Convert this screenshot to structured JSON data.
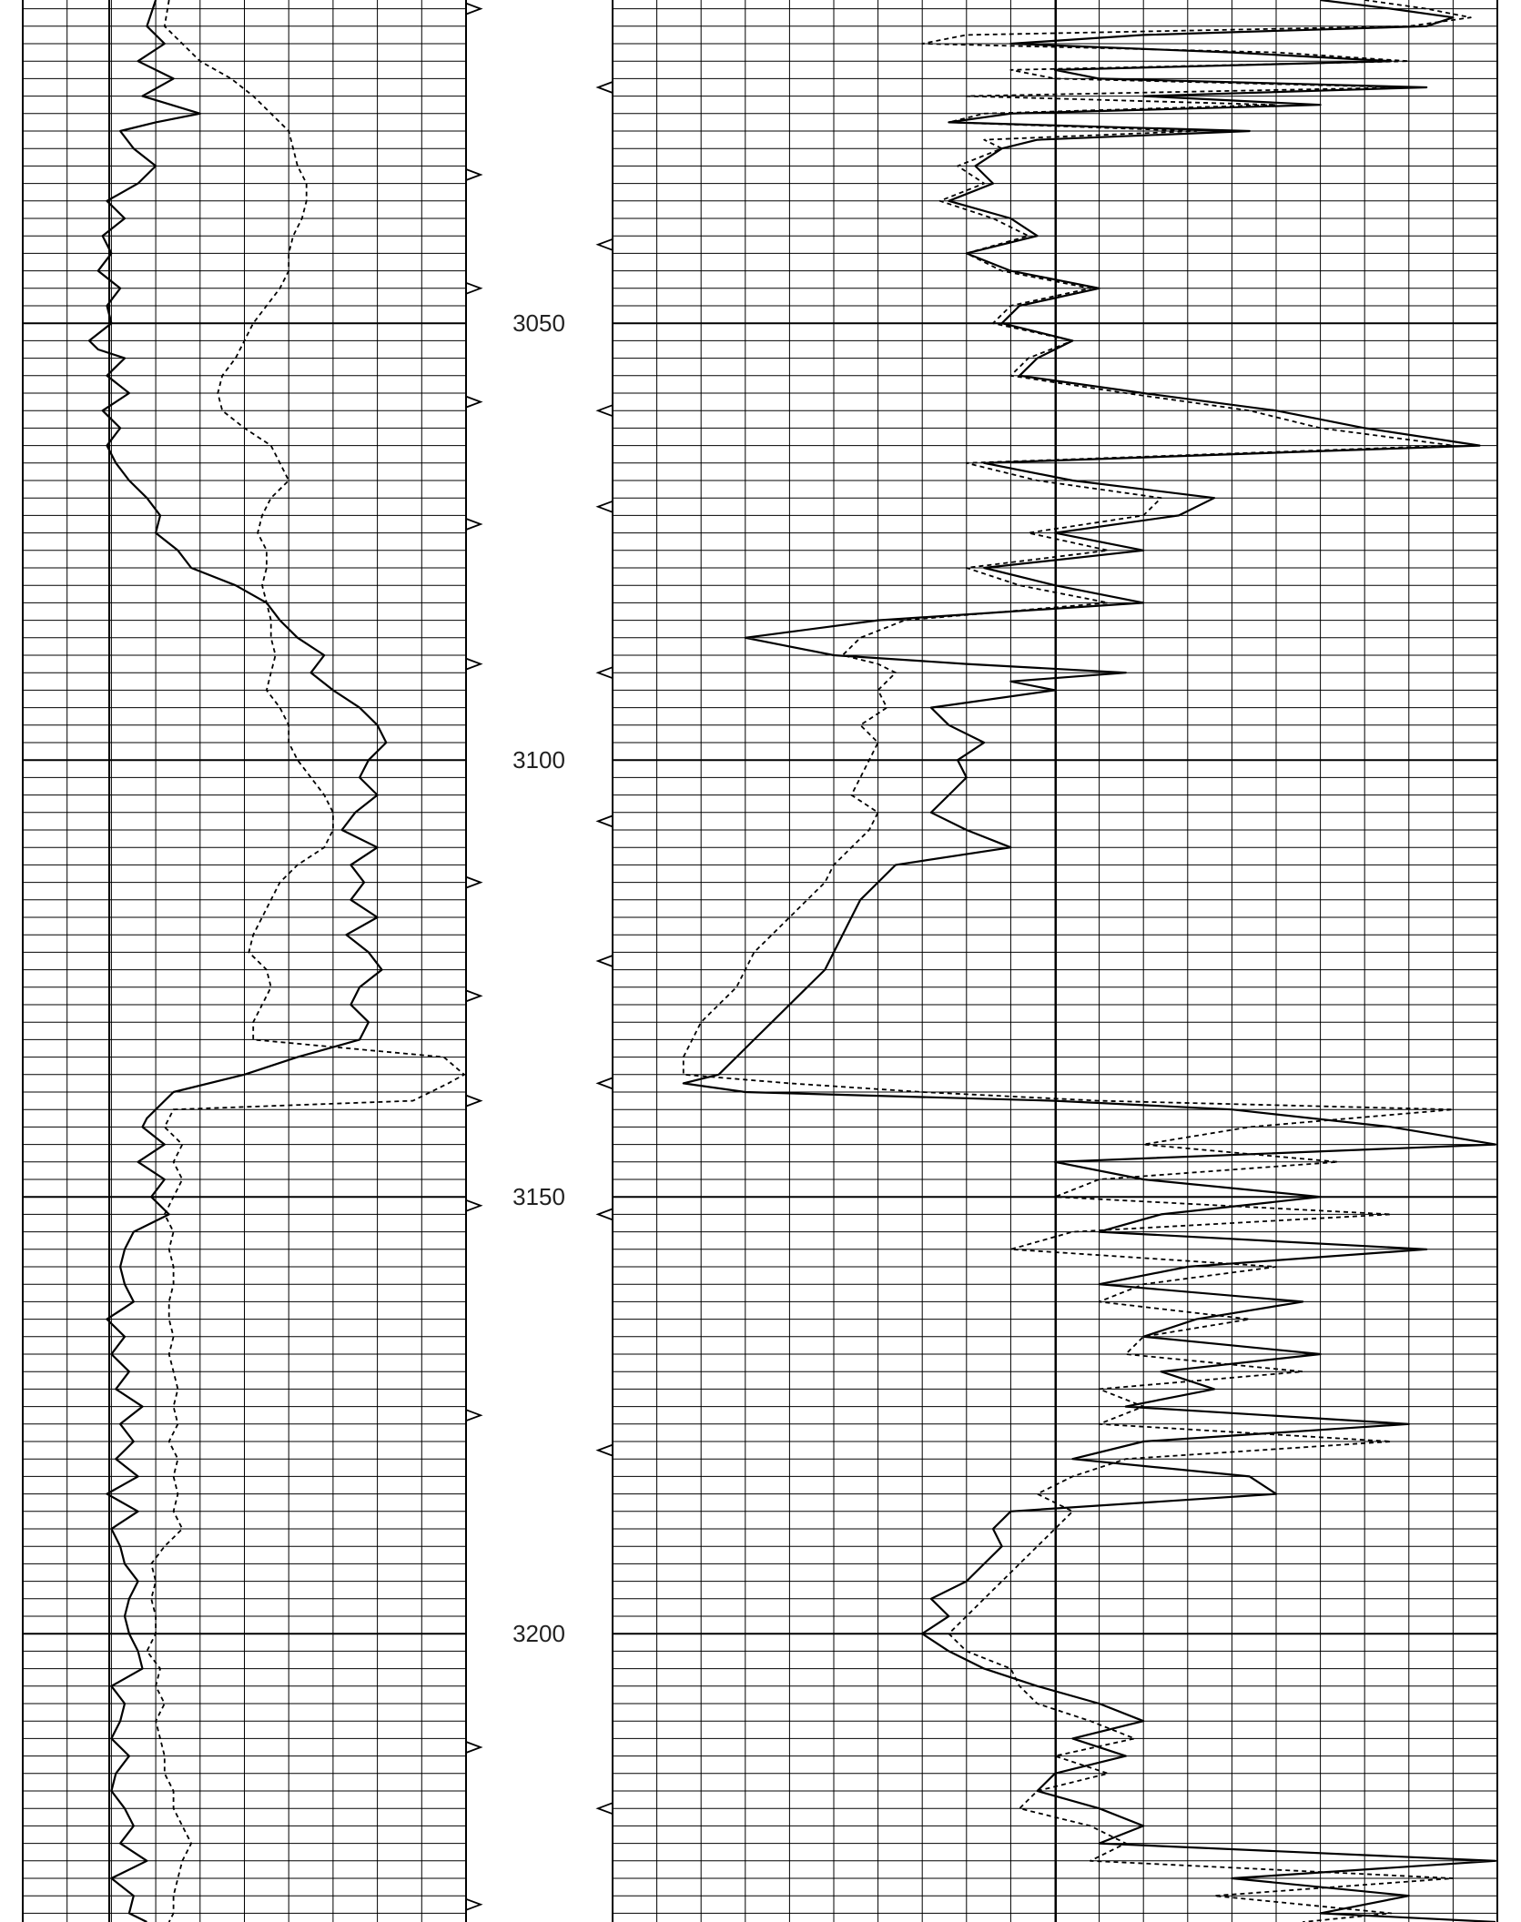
{
  "chart_data": {
    "type": "line",
    "title": "",
    "depth_axis": {
      "range": [
        3013,
        3233
      ],
      "tick_labels": [
        "3050",
        "3100",
        "3150",
        "3200"
      ],
      "major_step": 50,
      "minor_step": 2
    },
    "tracks": [
      {
        "name": "left-track",
        "scale": [
          0,
          100
        ],
        "series": [
          {
            "style": "solid",
            "depth": [
              3013,
              3016,
              3018,
              3020,
              3022,
              3024,
              3026,
              3027,
              3028,
              3030,
              3032,
              3034,
              3036,
              3038,
              3040,
              3042,
              3044,
              3046,
              3048,
              3050,
              3052,
              3053,
              3054,
              3056,
              3058,
              3060,
              3062,
              3064,
              3066,
              3068,
              3070,
              3072,
              3074,
              3076,
              3078,
              3080,
              3082,
              3084,
              3086,
              3088,
              3090,
              3092,
              3094,
              3096,
              3098,
              3100,
              3102,
              3104,
              3106,
              3108,
              3110,
              3112,
              3114,
              3116,
              3118,
              3120,
              3122,
              3124,
              3126,
              3128,
              3130,
              3132,
              3134,
              3136,
              3138,
              3140,
              3141,
              3142,
              3144,
              3146,
              3148,
              3150,
              3152,
              3154,
              3156,
              3158,
              3160,
              3162,
              3164,
              3166,
              3168,
              3170,
              3172,
              3174,
              3176,
              3178,
              3180,
              3182,
              3184,
              3186,
              3188,
              3190,
              3192,
              3194,
              3196,
              3198,
              3200,
              3202,
              3204,
              3206,
              3208,
              3210,
              3212,
              3214,
              3216,
              3218,
              3220,
              3222,
              3224,
              3226,
              3228,
              3230,
              3232,
              3233
            ],
            "value": [
              30,
              28,
              32,
              26,
              34,
              27,
              40,
              30,
              22,
              25,
              30,
              26,
              19,
              23,
              18,
              20,
              17,
              22,
              19,
              20,
              15,
              17,
              23,
              19,
              24,
              18,
              22,
              19,
              21,
              24,
              28,
              31,
              30,
              35,
              38,
              48,
              55,
              58,
              62,
              68,
              65,
              70,
              76,
              80,
              82,
              78,
              76,
              80,
              75,
              72,
              80,
              74,
              77,
              74,
              80,
              73,
              78,
              81,
              76,
              74,
              78,
              76,
              62,
              50,
              34,
              30,
              28,
              27,
              32,
              26,
              32,
              29,
              33,
              25,
              23,
              22,
              23,
              25,
              19,
              23,
              20,
              24,
              21,
              27,
              22,
              25,
              21,
              26,
              19,
              26,
              20,
              22,
              23,
              26,
              24,
              23,
              24,
              26,
              27,
              20,
              23,
              22,
              20,
              24,
              21,
              20,
              23,
              25,
              22,
              28,
              20,
              25,
              24,
              28
            ]
          },
          {
            "style": "dashed",
            "depth": [
              3013,
              3016,
              3018,
              3020,
              3022,
              3024,
              3026,
              3028,
              3030,
              3032,
              3034,
              3036,
              3038,
              3040,
              3042,
              3044,
              3046,
              3048,
              3050,
              3052,
              3054,
              3056,
              3058,
              3060,
              3062,
              3064,
              3066,
              3068,
              3070,
              3072,
              3074,
              3076,
              3078,
              3080,
              3082,
              3084,
              3086,
              3088,
              3090,
              3092,
              3094,
              3096,
              3098,
              3100,
              3102,
              3104,
              3106,
              3108,
              3110,
              3112,
              3114,
              3116,
              3118,
              3120,
              3122,
              3124,
              3126,
              3128,
              3130,
              3132,
              3134,
              3136,
              3137,
              3138,
              3139,
              3140,
              3142,
              3144,
              3146,
              3148,
              3150,
              3152,
              3154,
              3156,
              3158,
              3160,
              3162,
              3164,
              3166,
              3168,
              3170,
              3172,
              3174,
              3176,
              3178,
              3180,
              3182,
              3184,
              3186,
              3188,
              3190,
              3192,
              3194,
              3196,
              3198,
              3200,
              3202,
              3204,
              3206,
              3208,
              3210,
              3212,
              3214,
              3216,
              3218,
              3220,
              3222,
              3224,
              3226,
              3228,
              3230,
              3232,
              3233
            ],
            "value": [
              33,
              32,
              36,
              40,
              47,
              52,
              56,
              60,
              61,
              62,
              64,
              64,
              63,
              61,
              60,
              60,
              58,
              55,
              52,
              50,
              48,
              45,
              44,
              45,
              50,
              56,
              58,
              60,
              56,
              54,
              53,
              55,
              55,
              54,
              55,
              56,
              56,
              57,
              56,
              55,
              58,
              60,
              60,
              62,
              65,
              68,
              70,
              70,
              68,
              62,
              58,
              56,
              54,
              52,
              51,
              55,
              56,
              54,
              52,
              52,
              95,
              100,
              96,
              92,
              88,
              34,
              32,
              36,
              34,
              36,
              34,
              32,
              34,
              33,
              34,
              34,
              33,
              33,
              34,
              33,
              34,
              35,
              34,
              35,
              33,
              35,
              34,
              35,
              34,
              36,
              32,
              29,
              30,
              29,
              30,
              30,
              28,
              31,
              30,
              32,
              30,
              31,
              32,
              32,
              34,
              34,
              36,
              38,
              36,
              35,
              34,
              34,
              33
            ]
          }
        ]
      },
      {
        "name": "right-track",
        "scale": [
          0,
          100
        ],
        "series": [
          {
            "style": "solid",
            "depth": [
              3013,
              3014,
              3015,
              3016,
              3017,
              3018,
              3019,
              3020,
              3021,
              3022,
              3023,
              3024,
              3025,
              3026,
              3027,
              3028,
              3029,
              3030,
              3032,
              3034,
              3036,
              3038,
              3040,
              3042,
              3044,
              3046,
              3048,
              3050,
              3052,
              3054,
              3056,
              3058,
              3060,
              3062,
              3064,
              3066,
              3068,
              3070,
              3072,
              3074,
              3076,
              3078,
              3080,
              3082,
              3084,
              3086,
              3088,
              3089,
              3090,
              3091,
              3092,
              3094,
              3096,
              3098,
              3100,
              3102,
              3104,
              3106,
              3108,
              3110,
              3112,
              3114,
              3116,
              3118,
              3120,
              3122,
              3124,
              3126,
              3128,
              3130,
              3132,
              3134,
              3136,
              3137,
              3138,
              3139,
              3140,
              3142,
              3144,
              3146,
              3148,
              3150,
              3152,
              3154,
              3156,
              3158,
              3160,
              3162,
              3164,
              3166,
              3168,
              3170,
              3172,
              3174,
              3176,
              3178,
              3180,
              3182,
              3184,
              3186,
              3188,
              3190,
              3192,
              3194,
              3196,
              3198,
              3200,
              3202,
              3204,
              3206,
              3208,
              3210,
              3212,
              3214,
              3216,
              3218,
              3220,
              3222,
              3224,
              3226,
              3228,
              3230,
              3232,
              3233
            ],
            "value": [
              80,
              88,
              95,
              92,
              60,
              45,
              70,
              88,
              50,
              55,
              92,
              60,
              80,
              45,
              38,
              72,
              48,
              44,
              41,
              43,
              38,
              45,
              48,
              40,
              45,
              55,
              46,
              44,
              52,
              48,
              46,
              60,
              75,
              85,
              98,
              42,
              52,
              68,
              64,
              50,
              60,
              42,
              50,
              60,
              30,
              15,
              25,
              40,
              58,
              45,
              50,
              36,
              38,
              42,
              39,
              40,
              38,
              36,
              40,
              45,
              32,
              30,
              28,
              27,
              26,
              25,
              24,
              22,
              20,
              18,
              16,
              14,
              12,
              8,
              15,
              50,
              70,
              88,
              100,
              50,
              60,
              80,
              62,
              55,
              92,
              65,
              55,
              78,
              66,
              60,
              80,
              62,
              68,
              58,
              90,
              60,
              52,
              72,
              75,
              45,
              43,
              44,
              42,
              40,
              36,
              38,
              35,
              38,
              42,
              48,
              55,
              60,
              52,
              58,
              50,
              48,
              55,
              60,
              55,
              100,
              70,
              90,
              80,
              100
            ]
          },
          {
            "style": "dashed",
            "depth": [
              3013,
              3014,
              3015,
              3016,
              3017,
              3018,
              3019,
              3020,
              3021,
              3022,
              3023,
              3024,
              3025,
              3026,
              3027,
              3028,
              3029,
              3030,
              3032,
              3034,
              3036,
              3038,
              3040,
              3042,
              3044,
              3046,
              3048,
              3050,
              3052,
              3054,
              3056,
              3058,
              3060,
              3062,
              3064,
              3066,
              3068,
              3070,
              3072,
              3074,
              3076,
              3078,
              3080,
              3082,
              3084,
              3086,
              3088,
              3089,
              3090,
              3092,
              3094,
              3096,
              3098,
              3100,
              3102,
              3104,
              3106,
              3108,
              3110,
              3112,
              3114,
              3116,
              3118,
              3120,
              3122,
              3124,
              3126,
              3128,
              3130,
              3132,
              3134,
              3136,
              3137,
              3138,
              3139,
              3140,
              3142,
              3144,
              3146,
              3148,
              3150,
              3152,
              3154,
              3156,
              3158,
              3160,
              3162,
              3164,
              3166,
              3168,
              3170,
              3172,
              3174,
              3176,
              3178,
              3180,
              3182,
              3184,
              3186,
              3188,
              3190,
              3192,
              3194,
              3196,
              3198,
              3200,
              3202,
              3204,
              3206,
              3208,
              3210,
              3212,
              3214,
              3216,
              3218,
              3220,
              3222,
              3224,
              3226,
              3228,
              3230,
              3232,
              3233
            ],
            "value": [
              85,
              92,
              97,
              90,
              40,
              35,
              75,
              90,
              45,
              50,
              90,
              40,
              75,
              42,
              38,
              66,
              42,
              44,
              39,
              42,
              37,
              43,
              47,
              40,
              44,
              54,
              45,
              43,
              52,
              47,
              45,
              58,
              72,
              80,
              95,
              40,
              48,
              62,
              60,
              47,
              56,
              40,
              46,
              56,
              33,
              28,
              26,
              30,
              32,
              30,
              31,
              28,
              30,
              29,
              28,
              27,
              30,
              29,
              27,
              25,
              24,
              22,
              20,
              18,
              16,
              15,
              14,
              12,
              10,
              9,
              8,
              8,
              20,
              35,
              55,
              95,
              72,
              60,
              82,
              55,
              50,
              88,
              52,
              45,
              75,
              60,
              55,
              72,
              60,
              58,
              78,
              55,
              60,
              55,
              88,
              58,
              52,
              48,
              52,
              50,
              48,
              46,
              44,
              42,
              40,
              38,
              40,
              45,
              46,
              48,
              54,
              59,
              50,
              56,
              48,
              46,
              54,
              58,
              54,
              95,
              68,
              88,
              78,
              95
            ]
          }
        ]
      }
    ]
  },
  "markers": {
    "left": [
      3014,
      3033,
      3046,
      3059,
      3073,
      3089,
      3114,
      3127,
      3139,
      3151,
      3175,
      3213,
      3231
    ],
    "right": [
      3023,
      3041,
      3060,
      3071,
      3090,
      3107,
      3123,
      3137,
      3152,
      3179,
      3220
    ]
  }
}
